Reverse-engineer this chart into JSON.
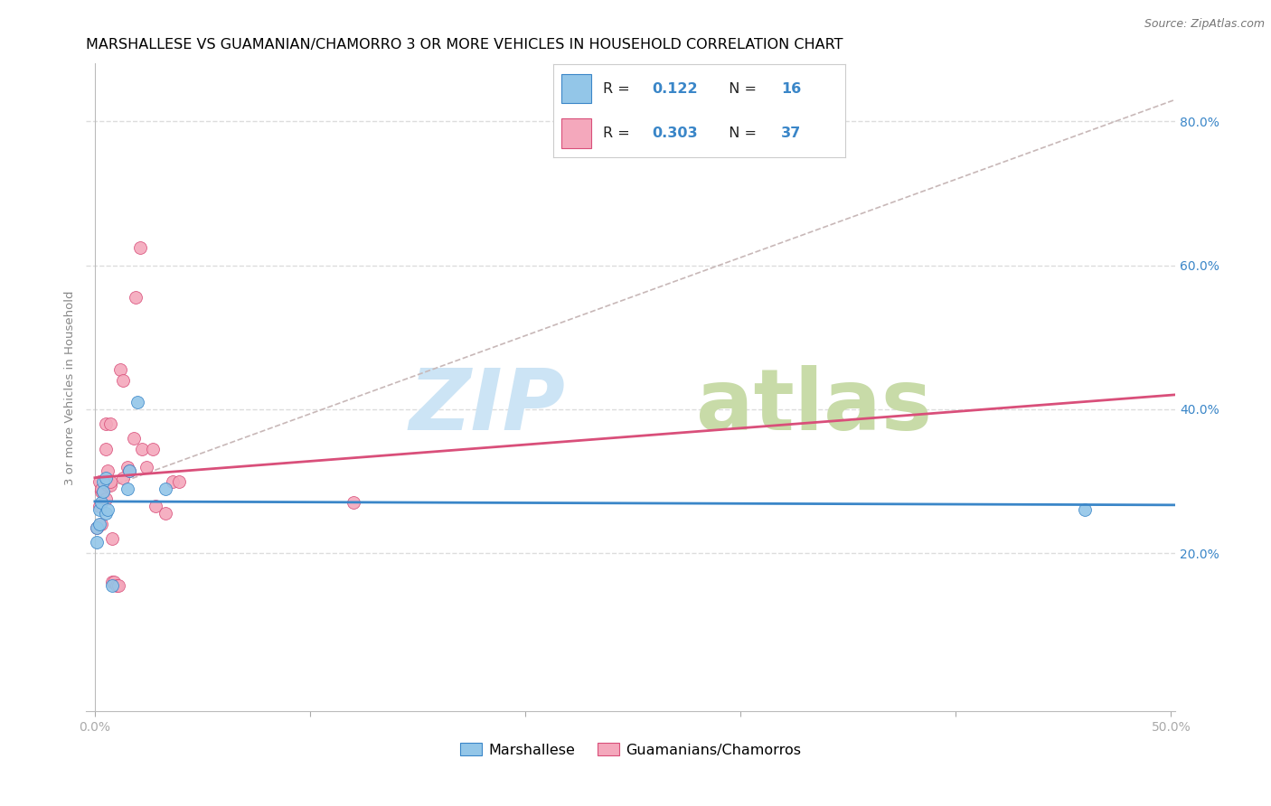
{
  "title": "MARSHALLESE VS GUAMANIAN/CHAMORRO 3 OR MORE VEHICLES IN HOUSEHOLD CORRELATION CHART",
  "source": "Source: ZipAtlas.com",
  "ylabel": "3 or more Vehicles in Household",
  "xlim": [
    -0.004,
    0.502
  ],
  "ylim": [
    -0.02,
    0.88
  ],
  "xtick_positions": [
    0.0,
    0.1,
    0.2,
    0.3,
    0.4,
    0.5
  ],
  "xticklabels": [
    "0.0%",
    "",
    "",
    "",
    "",
    "50.0%"
  ],
  "yticks_right": [
    0.2,
    0.4,
    0.6,
    0.8
  ],
  "yticklabels_right": [
    "20.0%",
    "40.0%",
    "60.0%",
    "80.0%"
  ],
  "grid_color": "#dddddd",
  "background_color": "#ffffff",
  "blue_color": "#93c6e8",
  "pink_color": "#f4a8bc",
  "blue_line_color": "#3a86c8",
  "pink_line_color": "#d94f7a",
  "dashed_line_color": "#c8b8b8",
  "marshallese_R": "0.122",
  "marshallese_N": "16",
  "guamanian_R": "0.303",
  "guamanian_N": "37",
  "legend_label_1": "Marshallese",
  "legend_label_2": "Guamanians/Chamorros",
  "marshallese_x": [
    0.001,
    0.001,
    0.002,
    0.002,
    0.003,
    0.004,
    0.004,
    0.005,
    0.005,
    0.006,
    0.008,
    0.015,
    0.016,
    0.02,
    0.033,
    0.46
  ],
  "marshallese_y": [
    0.215,
    0.235,
    0.26,
    0.24,
    0.27,
    0.3,
    0.285,
    0.305,
    0.255,
    0.26,
    0.155,
    0.29,
    0.315,
    0.41,
    0.29,
    0.26
  ],
  "guamanian_x": [
    0.001,
    0.002,
    0.002,
    0.003,
    0.003,
    0.003,
    0.004,
    0.005,
    0.005,
    0.005,
    0.006,
    0.006,
    0.006,
    0.007,
    0.007,
    0.007,
    0.008,
    0.008,
    0.009,
    0.01,
    0.011,
    0.012,
    0.013,
    0.013,
    0.015,
    0.016,
    0.018,
    0.019,
    0.021,
    0.022,
    0.024,
    0.027,
    0.028,
    0.033,
    0.036,
    0.039,
    0.12
  ],
  "guamanian_y": [
    0.235,
    0.3,
    0.265,
    0.285,
    0.29,
    0.24,
    0.285,
    0.38,
    0.345,
    0.275,
    0.295,
    0.315,
    0.3,
    0.295,
    0.3,
    0.38,
    0.22,
    0.16,
    0.16,
    0.155,
    0.155,
    0.455,
    0.44,
    0.305,
    0.32,
    0.315,
    0.36,
    0.555,
    0.625,
    0.345,
    0.32,
    0.345,
    0.265,
    0.255,
    0.3,
    0.3,
    0.27
  ],
  "title_fontsize": 11.5,
  "source_fontsize": 9,
  "tick_fontsize": 10,
  "legend_fontsize": 11.5,
  "marker_size": 100
}
